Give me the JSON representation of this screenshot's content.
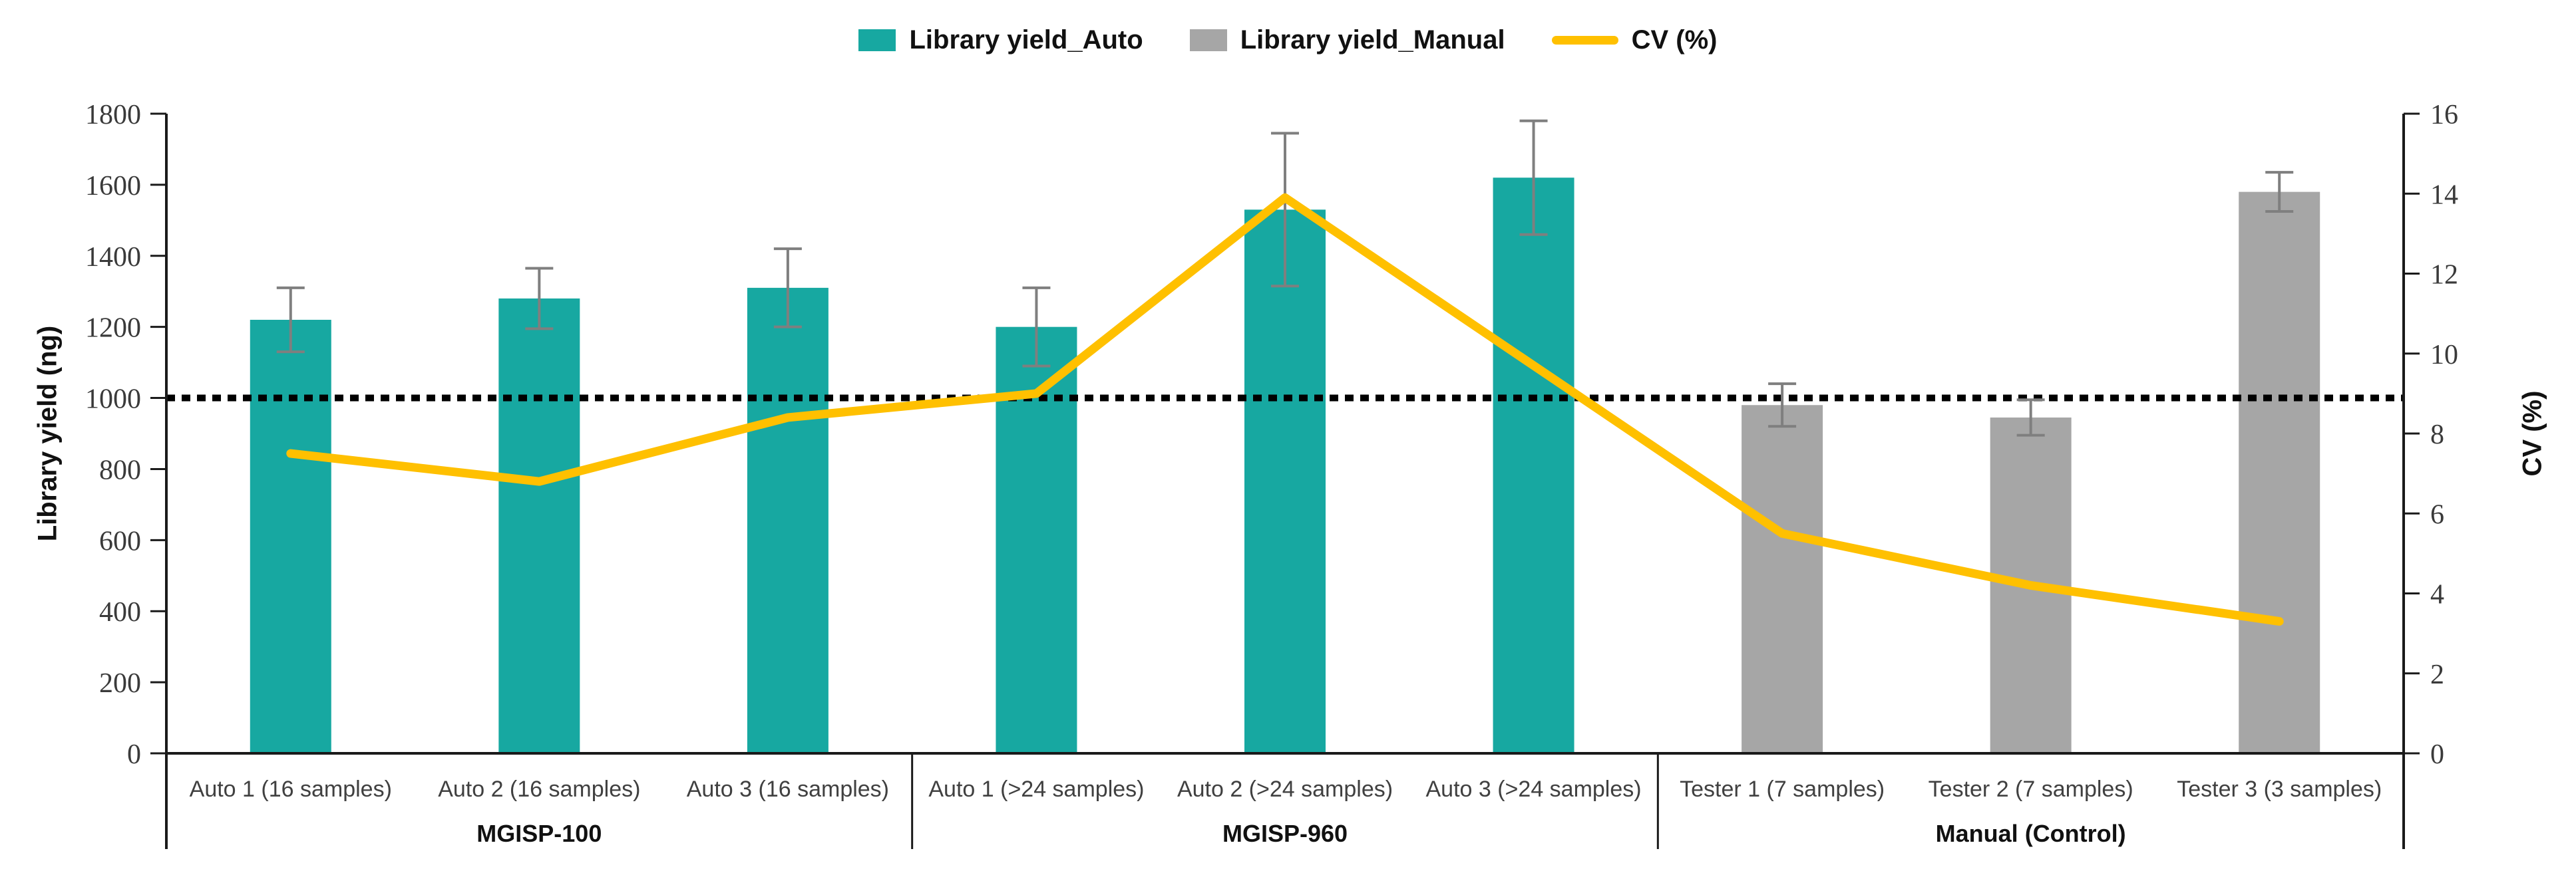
{
  "chart_data": {
    "type": "bar+line",
    "title": "",
    "categories": [
      "Auto 1 (16 samples)",
      "Auto 2 (16 samples)",
      "Auto 3 (16 samples)",
      "Auto 1 (>24 samples)",
      "Auto 2 (>24 samples)",
      "Auto 3 (>24 samples)",
      "Tester 1 (7 samples)",
      "Tester 2 (7 samples)",
      "Tester 3 (3 samples)"
    ],
    "groups": [
      {
        "label": "MGISP-100",
        "span": 3
      },
      {
        "label": "MGISP-960",
        "span": 3
      },
      {
        "label": "Manual (Control)",
        "span": 3
      }
    ],
    "series": [
      {
        "name": "Library yield_Auto",
        "type": "bar",
        "axis": "left",
        "color": "#17A8A1",
        "values": [
          1220,
          1280,
          1310,
          1200,
          1530,
          1620,
          null,
          null,
          null
        ],
        "errors": [
          90,
          85,
          110,
          110,
          215,
          160,
          null,
          null,
          null
        ]
      },
      {
        "name": "Library yield_Manual",
        "type": "bar",
        "axis": "left",
        "color": "#A6A6A6",
        "values": [
          null,
          null,
          null,
          null,
          null,
          null,
          980,
          945,
          1580
        ],
        "errors": [
          null,
          null,
          null,
          null,
          null,
          null,
          60,
          50,
          55
        ]
      },
      {
        "name": "CV (%)",
        "type": "line",
        "axis": "right",
        "color": "#FFC000",
        "values": [
          7.5,
          6.8,
          8.4,
          9.0,
          13.9,
          9.7,
          5.5,
          4.2,
          3.3
        ]
      }
    ],
    "left_axis": {
      "title": "Library yield (ng)",
      "min": 0,
      "max": 1800,
      "step": 200
    },
    "right_axis": {
      "title": "CV (%)",
      "min": 0,
      "max": 16,
      "step": 2
    },
    "reference_line": {
      "axis": "left",
      "value": 1000,
      "style": "dotted",
      "color": "#000000"
    },
    "grid": false,
    "legend_position": "top",
    "error_bar_color": "#7F7F7F"
  }
}
